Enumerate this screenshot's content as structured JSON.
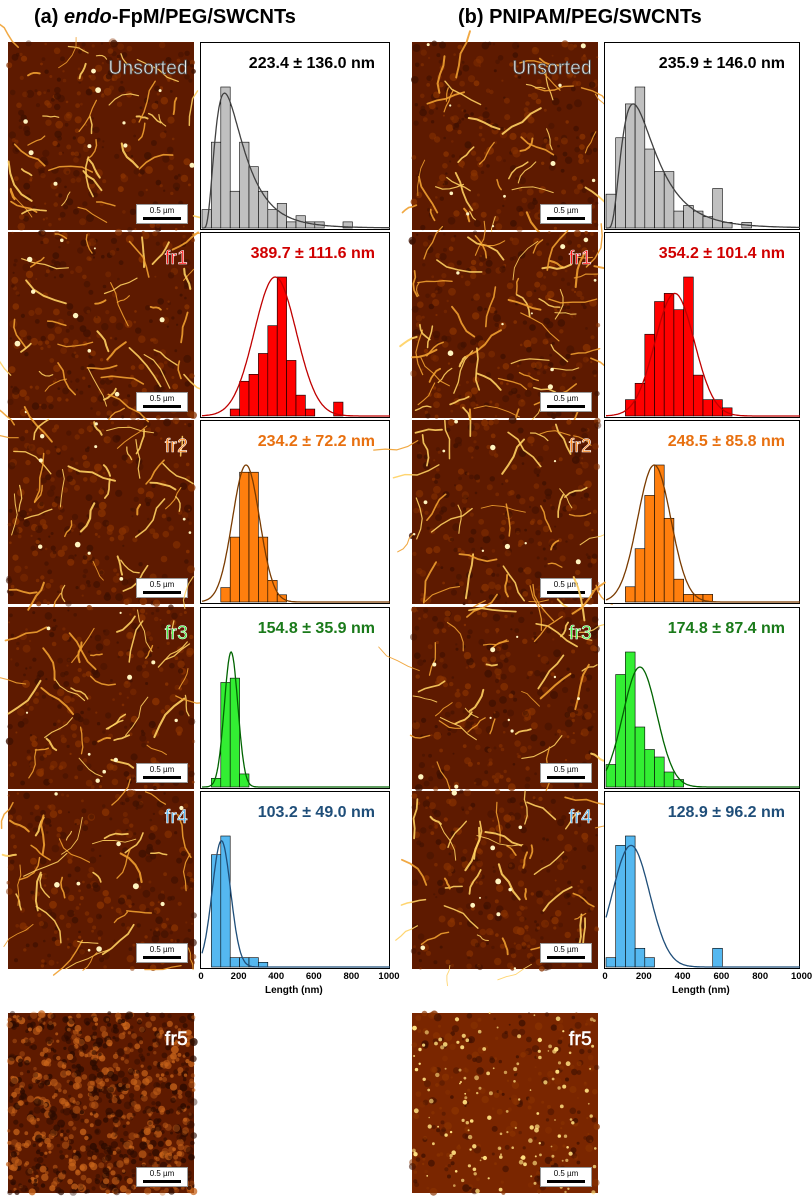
{
  "panels": [
    {
      "title_prefix": "(a) ",
      "title_italic": "endo",
      "title_rest": "-FpM/PEG/SWCNTs",
      "afm_style": "a",
      "xlabel": "Length (nm)",
      "fr5_label": "fr5",
      "scalebar": "0.5 µm"
    },
    {
      "title_prefix": "(b) PNIPAM/PEG/SWCNTs",
      "title_italic": "",
      "title_rest": "",
      "afm_style": "b",
      "xlabel": "Length (nm)",
      "fr5_label": "fr5",
      "scalebar": "0.5 µm"
    }
  ],
  "colors": {
    "unsorted_fill": "#c0c0c0",
    "unsorted_line": "#404040",
    "unsorted_text": "#000000",
    "fr1_fill": "#ff0000",
    "fr1_line": "#c00000",
    "fr1_text": "#d00000",
    "fr2_fill": "#ff7f0e",
    "fr2_line": "#7a3b00",
    "fr2_text": "#e87010",
    "fr3_fill": "#33ee33",
    "fr3_line": "#006400",
    "fr3_text": "#1a7a1a",
    "fr4_fill": "#55b8f0",
    "fr4_line": "#1f4e79",
    "fr4_text": "#1f4e79"
  },
  "chart_data": [
    {
      "type": "bar",
      "panel": "a",
      "row": "Unsorted",
      "afm_label": "Unsorted",
      "title": "223.4 ± 136.0 nm",
      "bin_width": 50,
      "xlim": [
        0,
        1000
      ],
      "bins": [
        0,
        50,
        100,
        150,
        200,
        250,
        300,
        350,
        400,
        450,
        500,
        550,
        600,
        650,
        700,
        750
      ],
      "values": [
        3,
        14,
        23,
        6,
        14,
        10,
        6,
        3,
        4,
        1,
        2,
        1,
        1,
        0,
        0,
        1
      ],
      "fit": {
        "kind": "lognormal",
        "peak": 120,
        "peak_value": 22
      }
    },
    {
      "type": "bar",
      "panel": "a",
      "row": "fr1",
      "afm_label": "fr1",
      "title": "389.7 ± 111.6 nm",
      "bin_width": 50,
      "xlim": [
        0,
        1000
      ],
      "bins": [
        150,
        200,
        250,
        300,
        350,
        400,
        450,
        500,
        550,
        600,
        650,
        700
      ],
      "values": [
        1,
        5,
        6,
        9,
        13,
        20,
        8,
        3,
        1,
        0,
        0,
        2
      ],
      "fit": {
        "kind": "gaussian",
        "mean": 389.7,
        "sd": 111.6,
        "peak_value": 20
      }
    },
    {
      "type": "bar",
      "panel": "a",
      "row": "fr2",
      "afm_label": "fr2",
      "title": "234.2 ± 72.2 nm",
      "bin_width": 50,
      "xlim": [
        0,
        1000
      ],
      "bins": [
        100,
        150,
        200,
        250,
        300,
        350,
        400
      ],
      "values": [
        2,
        9,
        18,
        18,
        9,
        3,
        1
      ],
      "fit": {
        "kind": "gaussian",
        "mean": 234.2,
        "sd": 72.2,
        "peak_value": 19
      }
    },
    {
      "type": "bar",
      "panel": "a",
      "row": "fr3",
      "afm_label": "fr3",
      "title": "154.8 ± 35.9 nm",
      "bin_width": 50,
      "xlim": [
        0,
        1000
      ],
      "bins": [
        50,
        100,
        150,
        200
      ],
      "values": [
        2,
        24,
        25,
        3
      ],
      "fit": {
        "kind": "gaussian",
        "mean": 154.8,
        "sd": 35.9,
        "peak_value": 31
      }
    },
    {
      "type": "bar",
      "panel": "a",
      "row": "fr4",
      "afm_label": "fr4",
      "title": "103.2 ± 49.0 nm",
      "bin_width": 50,
      "xlim": [
        0,
        1000
      ],
      "bins": [
        50,
        100,
        150,
        200,
        250,
        300
      ],
      "values": [
        24,
        28,
        2,
        2,
        2,
        1
      ],
      "fit": {
        "kind": "gaussian",
        "mean": 103.2,
        "sd": 49.0,
        "peak_value": 27
      },
      "xticks": [
        0,
        200,
        400,
        600,
        800,
        1000
      ],
      "xlabel": "Length (nm)"
    },
    {
      "type": "bar",
      "panel": "b",
      "row": "Unsorted",
      "afm_label": "Unsorted",
      "title": "235.9 ± 146.0 nm",
      "bin_width": 50,
      "xlim": [
        0,
        1000
      ],
      "bins": [
        0,
        50,
        100,
        150,
        200,
        250,
        300,
        350,
        400,
        450,
        500,
        550,
        600,
        650,
        700
      ],
      "values": [
        6,
        16,
        22,
        25,
        14,
        10,
        10,
        3,
        4,
        3,
        2,
        7,
        1,
        0,
        1
      ],
      "fit": {
        "kind": "lognormal",
        "peak": 140,
        "peak_value": 22
      }
    },
    {
      "type": "bar",
      "panel": "b",
      "row": "fr1",
      "afm_label": "fr1",
      "title": "354.2 ± 101.4 nm",
      "bin_width": 50,
      "xlim": [
        0,
        1000
      ],
      "bins": [
        100,
        150,
        200,
        250,
        300,
        350,
        400,
        450,
        500,
        550,
        600
      ],
      "values": [
        2,
        4,
        10,
        14,
        15,
        13,
        17,
        5,
        2,
        2,
        1
      ],
      "fit": {
        "kind": "gaussian",
        "mean": 354.2,
        "sd": 101.4,
        "peak_value": 15
      }
    },
    {
      "type": "bar",
      "panel": "b",
      "row": "fr2",
      "afm_label": "fr2",
      "title": "248.5 ± 85.8 nm",
      "bin_width": 50,
      "xlim": [
        0,
        1000
      ],
      "bins": [
        100,
        150,
        200,
        250,
        300,
        350,
        400,
        450,
        500
      ],
      "values": [
        2,
        7,
        14,
        18,
        11,
        3,
        1,
        1,
        1
      ],
      "fit": {
        "kind": "gaussian",
        "mean": 248.5,
        "sd": 85.8,
        "peak_value": 18
      }
    },
    {
      "type": "bar",
      "panel": "b",
      "row": "fr3",
      "afm_label": "fr3",
      "title": "174.8 ± 87.4 nm",
      "bin_width": 50,
      "xlim": [
        0,
        1000
      ],
      "bins": [
        0,
        50,
        100,
        150,
        200,
        250,
        300,
        350,
        400
      ],
      "values": [
        3,
        15,
        18,
        8,
        5,
        4,
        2,
        1,
        0
      ],
      "fit": {
        "kind": "gaussian",
        "mean": 174.8,
        "sd": 87.4,
        "peak_value": 16
      }
    },
    {
      "type": "bar",
      "panel": "b",
      "row": "fr4",
      "afm_label": "fr4",
      "title": "128.9 ± 96.2 nm",
      "bin_width": 50,
      "xlim": [
        0,
        1000
      ],
      "bins": [
        0,
        50,
        100,
        150,
        200,
        250,
        300,
        350,
        400,
        450,
        500,
        550
      ],
      "values": [
        1,
        13,
        14,
        2,
        1,
        0,
        0,
        0,
        0,
        0,
        0,
        2
      ],
      "fit": {
        "kind": "gaussian",
        "mean": 128.9,
        "sd": 96.2,
        "peak_value": 13
      },
      "xticks": [
        0,
        200,
        400,
        600,
        800,
        1000
      ],
      "xlabel": "Length (nm)"
    }
  ]
}
